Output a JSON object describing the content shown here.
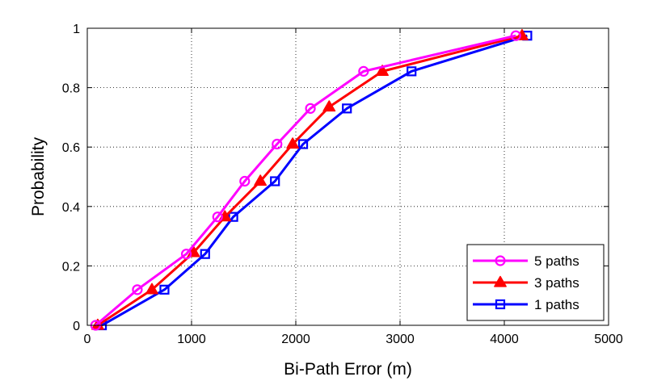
{
  "chart_data": {
    "type": "line",
    "title": "",
    "xlabel": "Bi-Path Error (m)",
    "ylabel": "Probability",
    "xlim": [
      0,
      5000
    ],
    "ylim": [
      0,
      1
    ],
    "xticks": [
      0,
      1000,
      2000,
      3000,
      4000,
      5000
    ],
    "yticks": [
      0,
      0.2,
      0.4,
      0.6,
      0.8,
      1
    ],
    "xtick_labels": [
      "0",
      "1000",
      "2000",
      "3000",
      "4000",
      "5000"
    ],
    "ytick_labels": [
      "0",
      "0.2",
      "0.4",
      "0.6",
      "0.8",
      "1"
    ],
    "grid": true,
    "legend_position": "bottom-right",
    "series": [
      {
        "name": "5 paths",
        "color": "#ff00ff",
        "marker": "circle",
        "x": [
          80,
          480,
          950,
          1250,
          1510,
          1820,
          2140,
          2650,
          4110
        ],
        "y": [
          0,
          0.12,
          0.24,
          0.365,
          0.485,
          0.61,
          0.73,
          0.855,
          0.975
        ]
      },
      {
        "name": "3 paths",
        "color": "#ff0000",
        "marker": "triangle",
        "x": [
          100,
          620,
          1020,
          1320,
          1660,
          1970,
          2320,
          2830,
          4170
        ],
        "y": [
          0,
          0.12,
          0.245,
          0.365,
          0.485,
          0.61,
          0.735,
          0.855,
          0.975
        ]
      },
      {
        "name": "1 paths",
        "color": "#0000ff",
        "marker": "square",
        "x": [
          140,
          740,
          1130,
          1400,
          1800,
          2070,
          2490,
          3110,
          4220
        ],
        "y": [
          0,
          0.12,
          0.24,
          0.365,
          0.485,
          0.61,
          0.73,
          0.855,
          0.975
        ]
      }
    ]
  }
}
